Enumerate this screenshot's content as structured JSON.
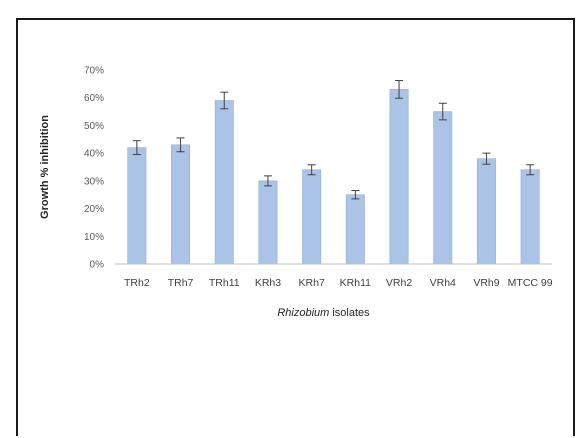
{
  "chart_data": {
    "type": "bar",
    "categories": [
      "TRh2",
      "TRh7",
      "TRh11",
      "KRh3",
      "KRh7",
      "KRh11",
      "VRh2",
      "VRh4",
      "VRh9",
      "MTCC 99"
    ],
    "values": [
      42,
      43,
      59,
      30,
      34,
      25,
      63,
      55,
      38,
      34
    ],
    "errors": [
      2.5,
      2.5,
      3,
      1.8,
      1.8,
      1.5,
      3.2,
      3,
      2,
      1.8
    ],
    "ylabel": "Growth % inhibition",
    "xlabel_italic": "Rhizobium",
    "xlabel_rest": " isolates",
    "ylim": [
      0,
      70
    ],
    "yticks": [
      "0%",
      "10%",
      "20%",
      "30%",
      "40%",
      "50%",
      "60%",
      "70%"
    ],
    "grid": false,
    "legend": "none",
    "bar_color": "#a9c4e6",
    "bar_edge": "#8fb0d9",
    "error_color": "#404040",
    "axis_color": "#bfbfbf"
  }
}
